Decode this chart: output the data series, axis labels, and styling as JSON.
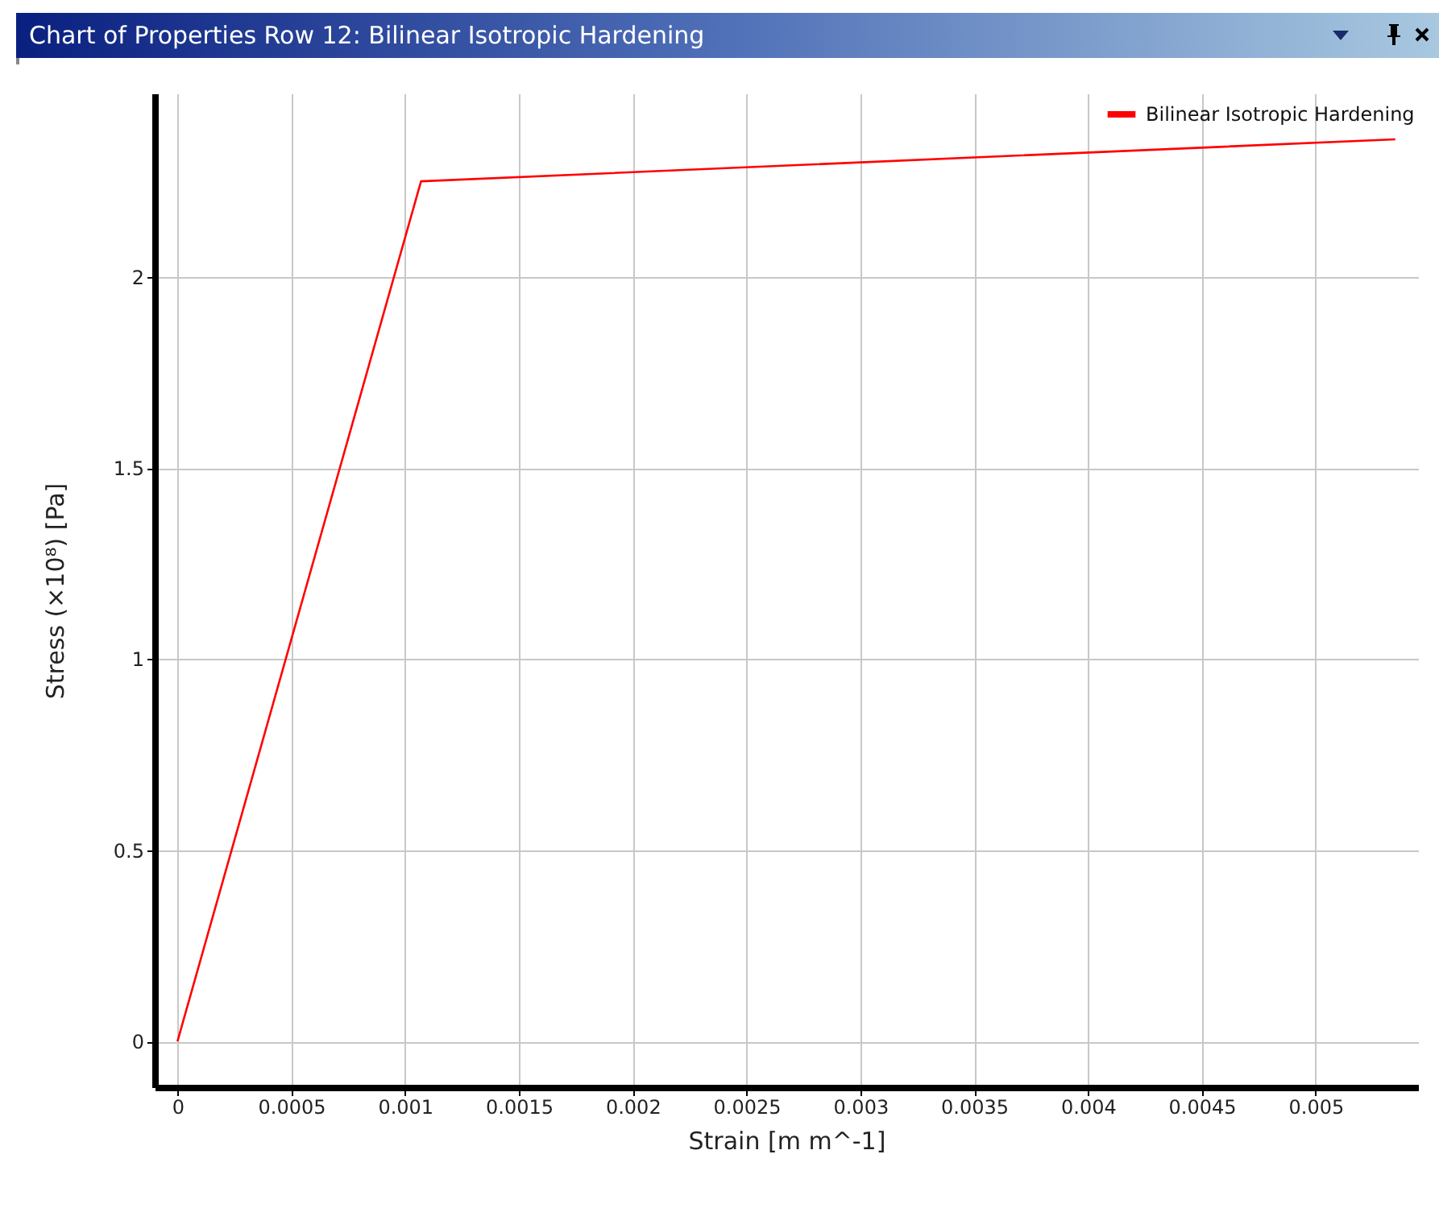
{
  "chart_data": {
    "type": "line",
    "title": "Chart of Properties Row 12: Bilinear Isotropic Hardening",
    "xlabel": "Strain  [m m^-1]",
    "ylabel": "Stress  (×10⁸)  [Pa]",
    "x": [
      0,
      0.00107,
      0.00535
    ],
    "series": [
      {
        "name": "Bilinear Isotropic Hardening",
        "color": "#ff0000",
        "values": [
          0,
          2.25,
          2.36
        ]
      }
    ],
    "xlim": [
      -0.0001,
      0.00545
    ],
    "xticks": [
      0,
      0.0005,
      0.001,
      0.0015,
      0.002,
      0.0025,
      0.003,
      0.0035,
      0.004,
      0.0045,
      0.005
    ],
    "ylim": [
      -0.12,
      2.48
    ],
    "yticks": [
      0,
      0.5,
      1,
      1.5,
      2
    ],
    "grid": true,
    "legend": "top right",
    "line_style": "solid",
    "marker": "none"
  }
}
